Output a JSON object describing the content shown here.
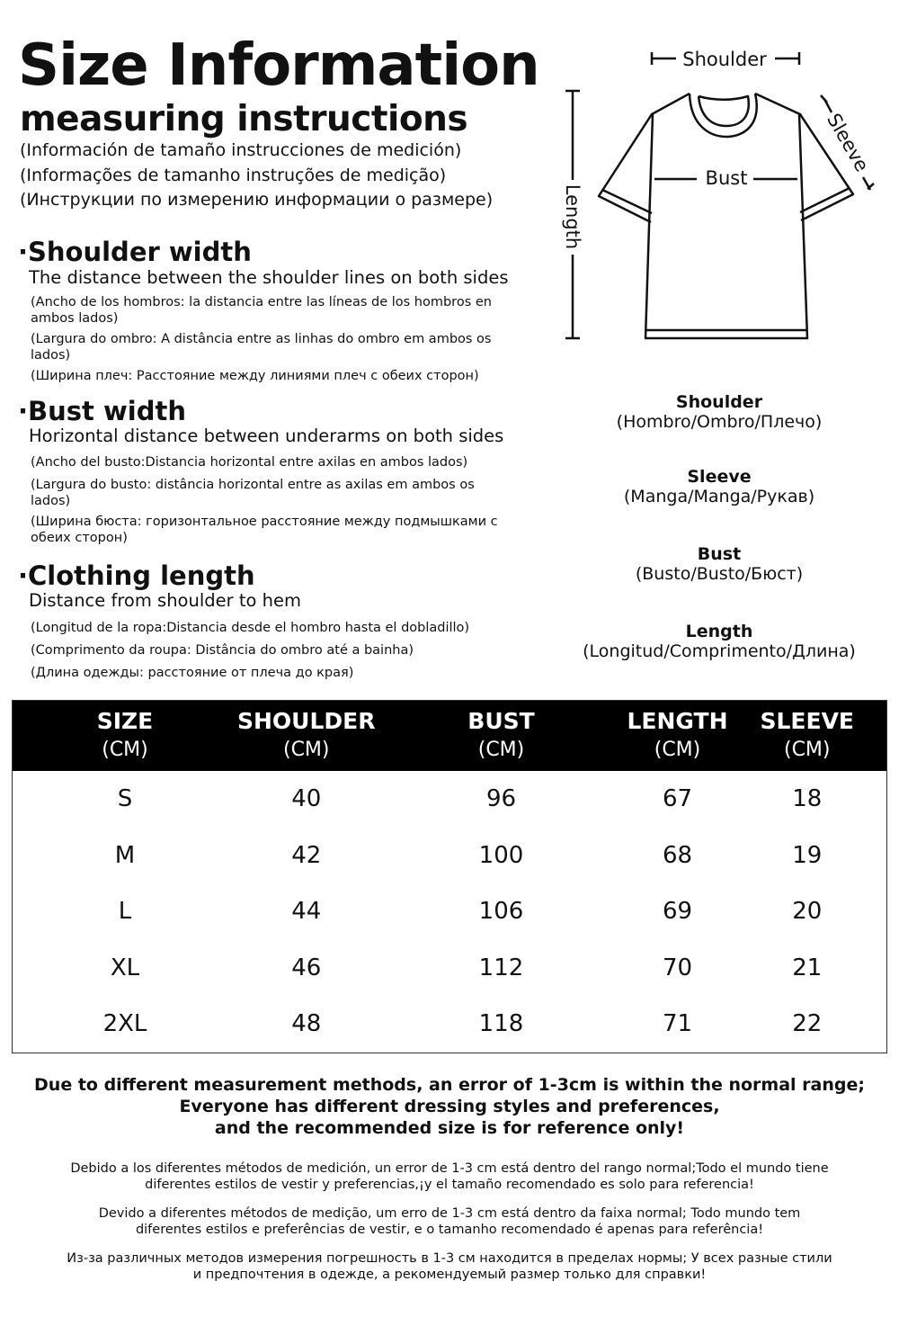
{
  "header": {
    "title": "Size Information",
    "subtitle": "measuring instructions",
    "translations": [
      "(Información de tamaño instrucciones de medición)",
      "(Informações de tamanho instruções de medição)",
      "(Инструкции по измерению информации о размере)"
    ]
  },
  "sections": [
    {
      "heading": "·Shoulder width",
      "description": "The distance between the shoulder lines on both sides",
      "notes": [
        "(Ancho de los hombros: la distancia entre las líneas de los hombros en ambos lados)",
        "(Largura do ombro: A distância entre as linhas do ombro em ambos os lados)",
        "(Ширина плеч: Расстояние между линиями плеч с обеих сторон)"
      ]
    },
    {
      "heading": "·Bust width",
      "description": "Horizontal distance between underarms on both sides",
      "notes": [
        "(Ancho del busto:Distancia horizontal entre axilas en ambos lados)",
        "(Largura do busto: distância horizontal entre as axilas em ambos os lados)",
        "(Ширина бюста: горизонтальное расстояние между подмышками с обеих сторон)"
      ]
    },
    {
      "heading": "·Clothing length",
      "description": "Distance from shoulder to hem",
      "notes": [
        "(Longitud de la ropa:Distancia desde el hombro hasta el dobladillo)",
        "(Comprimento da roupa: Distância do ombro até a bainha)",
        "(Длина одежды: расстояние от плеча до края)"
      ]
    }
  ],
  "diagram": {
    "shoulder": "Shoulder",
    "sleeve": "Sleeve",
    "bust": "Bust",
    "length": "Length"
  },
  "legend": [
    {
      "label": "Shoulder",
      "translation": "(Hombro/Ombro/Плечо)"
    },
    {
      "label": "Sleeve",
      "translation": "(Manga/Manga/Рукав)"
    },
    {
      "label": "Bust",
      "translation": "(Busto/Busto/Бюст)"
    },
    {
      "label": "Length",
      "translation": "(Longitud/Comprimento/Длина)"
    }
  ],
  "table": {
    "columns": [
      {
        "label": "SIZE",
        "unit": "(CM)"
      },
      {
        "label": "SHOULDER",
        "unit": "(CM)"
      },
      {
        "label": "BUST",
        "unit": "(CM)"
      },
      {
        "label": "LENGTH",
        "unit": "(CM)"
      },
      {
        "label": "SLEEVE",
        "unit": "(CM)"
      }
    ],
    "rows": [
      [
        "S",
        "40",
        "96",
        "67",
        "18"
      ],
      [
        "M",
        "42",
        "100",
        "68",
        "19"
      ],
      [
        "L",
        "44",
        "106",
        "69",
        "20"
      ],
      [
        "XL",
        "46",
        "112",
        "70",
        "21"
      ],
      [
        "2XL",
        "48",
        "118",
        "71",
        "22"
      ]
    ]
  },
  "footer": {
    "notice": [
      "Due to different measurement methods, an error of 1-3cm is within the normal range;",
      "Everyone has different dressing styles and preferences,",
      "and the recommended size is for reference only!"
    ],
    "translations": [
      [
        "Debido a los diferentes métodos de medición, un error de 1-3 cm está dentro del rango normal;Todo el mundo tiene",
        "diferentes estilos de vestir y preferencias,¡y el tamaño recomendado es solo para referencia!"
      ],
      [
        "Devido a diferentes métodos de medição, um erro de 1-3 cm está dentro da faixa normal; Todo mundo tem",
        "diferentes estilos e preferências de vestir, e o tamanho recomendado é apenas para referência!"
      ],
      [
        "Из-за различных методов измерения погрешность в 1-3 см находится в пределах нормы; У всех разные стили",
        "и предпочтения в одежде, а рекомендуемый размер только для справки!"
      ]
    ]
  }
}
